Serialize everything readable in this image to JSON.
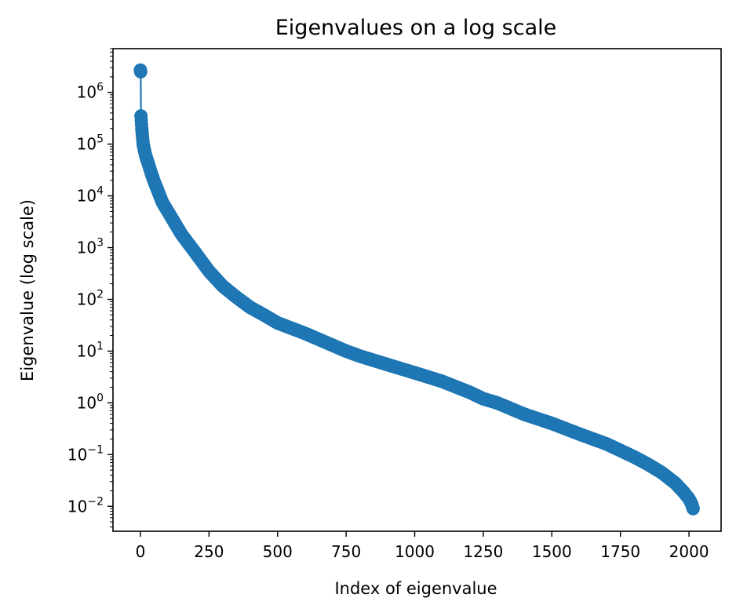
{
  "chart_data": {
    "type": "line",
    "title": "Eigenvalues on a log scale",
    "xlabel": "Index of eigenvalue",
    "ylabel": "Eigenvalue (log scale)",
    "xlim": [
      -100,
      2117
    ],
    "ylim": [
      0.0033,
      7000000
    ],
    "yscale": "log",
    "grid": false,
    "marker": "o",
    "color": "#1f77b4",
    "xticks": [
      0,
      250,
      500,
      750,
      1000,
      1250,
      1500,
      1750,
      2000
    ],
    "yticks": [
      {
        "base": "10",
        "exp": "−2",
        "value": 0.01
      },
      {
        "base": "10",
        "exp": "−1",
        "value": 0.1
      },
      {
        "base": "10",
        "exp": "0",
        "value": 1
      },
      {
        "base": "10",
        "exp": "1",
        "value": 10
      },
      {
        "base": "10",
        "exp": "2",
        "value": 100
      },
      {
        "base": "10",
        "exp": "3",
        "value": 1000
      },
      {
        "base": "10",
        "exp": "4",
        "value": 10000
      },
      {
        "base": "10",
        "exp": "5",
        "value": 100000
      },
      {
        "base": "10",
        "exp": "6",
        "value": 1000000
      }
    ],
    "series": [
      {
        "n_points": 2016,
        "x": [
          0,
          1,
          2,
          5,
          10,
          15,
          20,
          30,
          40,
          50,
          60,
          80,
          100,
          125,
          150,
          175,
          200,
          250,
          300,
          350,
          400,
          450,
          500,
          600,
          700,
          750,
          800,
          900,
          1000,
          1100,
          1200,
          1250,
          1300,
          1400,
          1500,
          1600,
          1700,
          1750,
          1800,
          1850,
          1900,
          1950,
          1980,
          2000,
          2010,
          2015
        ],
        "values": [
          2700000,
          2500000,
          350000,
          200000,
          100000,
          75000,
          58000,
          40000,
          27000,
          19000,
          14000,
          7500,
          5000,
          3000,
          1800,
          1200,
          800,
          350,
          180,
          110,
          70,
          50,
          35,
          22,
          13,
          10,
          8,
          5.5,
          3.8,
          2.6,
          1.6,
          1.2,
          1.0,
          0.6,
          0.4,
          0.25,
          0.16,
          0.12,
          0.09,
          0.065,
          0.045,
          0.028,
          0.019,
          0.014,
          0.011,
          0.009
        ]
      }
    ]
  }
}
